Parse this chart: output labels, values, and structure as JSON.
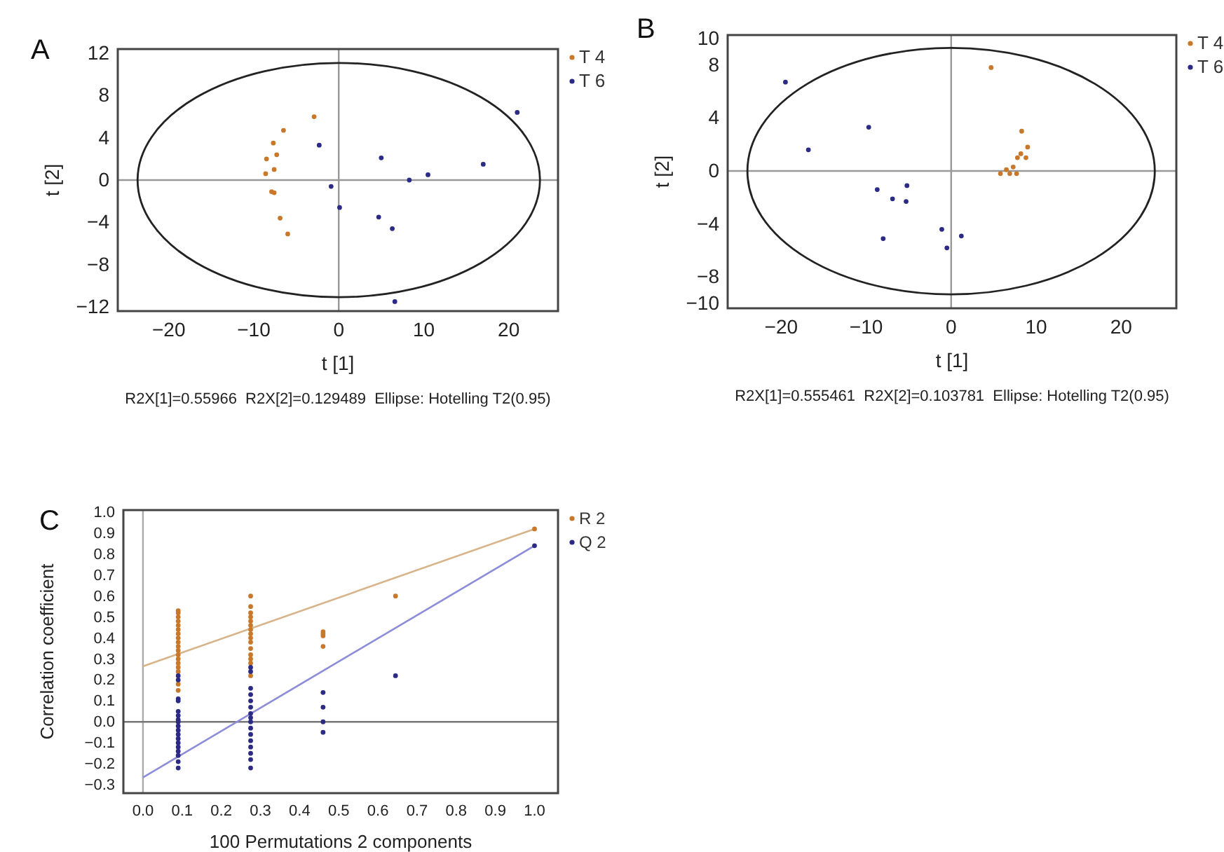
{
  "chart_data": [
    {
      "type": "scatter",
      "title": "A",
      "xlabel": "t [1]",
      "ylabel": "t [2]",
      "annotations": [
        "R2X[1]=0.55966  R2X[2]=0.129489  Ellipse: Hotelling T2(0.95)"
      ],
      "xlim": [
        -26,
        25.8
      ],
      "ylim": [
        -12.4,
        12.4
      ],
      "xticks": [
        -20,
        -10,
        0,
        10,
        20
      ],
      "yticks": [
        12,
        8,
        4,
        0,
        -4,
        -8,
        -12
      ],
      "legend": "top right",
      "grid": false,
      "ref_lines": [
        {
          "axis": "x",
          "value": 0,
          "color": "#999999"
        },
        {
          "axis": "y",
          "value": 0,
          "color": "#999999"
        }
      ],
      "series": [
        {
          "name": "T 4",
          "color": "#c8782a",
          "x": [
            -2.9,
            -6.5,
            -7.7,
            -7.3,
            -8.5,
            -7.6,
            -8.6,
            -7.9,
            -7.6,
            -6.9,
            -6.0
          ],
          "values": [
            6.0,
            4.7,
            3.5,
            2.4,
            2.0,
            1.0,
            0.6,
            -1.1,
            -1.2,
            -3.6,
            -5.1
          ]
        },
        {
          "name": "T 6",
          "color": "#2b2b85",
          "x": [
            -2.3,
            -0.9,
            0.1,
            5.0,
            8.3,
            10.5,
            17.0,
            21.0,
            4.7,
            6.3,
            6.6
          ],
          "values": [
            3.3,
            -0.6,
            -2.6,
            2.1,
            0.0,
            0.5,
            1.5,
            6.4,
            -3.5,
            -4.6,
            -11.5
          ]
        }
      ]
    },
    {
      "type": "scatter",
      "title": "B",
      "xlabel": "t [1]",
      "ylabel": "t [2]",
      "annotations": [
        "R2X[1]=0.555461  R2X[2]=0.103781  Ellipse: Hotelling T2(0.95)"
      ],
      "xlim": [
        -26.3,
        26.5
      ],
      "ylim": [
        -10.35,
        10.25
      ],
      "xticks": [
        -20,
        -10,
        0,
        10,
        20
      ],
      "yticks": [
        10,
        8,
        4,
        0,
        -4,
        -8,
        -10
      ],
      "legend": "top right",
      "grid": false,
      "ref_lines": [
        {
          "axis": "x",
          "value": 0,
          "color": "#999999"
        },
        {
          "axis": "y",
          "value": 0,
          "color": "#999999"
        }
      ],
      "series": [
        {
          "name": "T 4",
          "color": "#c8782a",
          "x": [
            4.7,
            8.3,
            9.0,
            8.2,
            7.8,
            8.8,
            7.3,
            6.5,
            5.8,
            6.9,
            7.7
          ],
          "values": [
            7.8,
            3.0,
            1.8,
            1.3,
            1.0,
            1.0,
            0.3,
            0.1,
            -0.2,
            -0.2,
            -0.2
          ]
        },
        {
          "name": "T 6",
          "color": "#2b2b85",
          "x": [
            -19.5,
            -9.7,
            -16.8,
            -8.7,
            -5.2,
            -6.9,
            -5.3,
            -8.0,
            -1.1,
            1.2,
            -0.5
          ],
          "values": [
            6.7,
            3.3,
            1.6,
            -1.4,
            -1.1,
            -2.1,
            -2.3,
            -5.1,
            -4.4,
            -4.9,
            -5.8
          ]
        }
      ]
    },
    {
      "type": "scatter",
      "title": "C",
      "xlabel": "100 Permutations 2 components",
      "ylabel": "Correlation coefficient",
      "xlim": [
        -0.05,
        1.06
      ],
      "ylim": [
        -0.34,
        1.01
      ],
      "xticks": [
        {
          "value": 0,
          "label": "0.0"
        },
        0.1,
        0.2,
        0.3,
        0.4,
        0.5,
        0.6,
        0.7,
        0.8,
        0.9,
        {
          "value": 1,
          "label": "1.0"
        }
      ],
      "yticks": [
        -0.3,
        -0.2,
        -0.1,
        {
          "value": 0,
          "label": "0.0"
        },
        0.1,
        0.2,
        0.3,
        0.4,
        0.5,
        0.6,
        0.7,
        0.8,
        0.9,
        {
          "value": 1,
          "label": "1.0"
        }
      ],
      "legend": "top right",
      "grid": false,
      "ref_lines": [
        {
          "axis": "x",
          "value": 0,
          "color": "#aaaaaa"
        },
        {
          "axis": "y",
          "value": 0,
          "color": "#777777"
        }
      ],
      "series": [
        {
          "name": "R 2",
          "color": "#c8782a",
          "x": [
            0.09,
            0.09,
            0.09,
            0.09,
            0.09,
            0.09,
            0.09,
            0.09,
            0.09,
            0.09,
            0.09,
            0.09,
            0.09,
            0.09,
            0.09,
            0.09,
            0.09,
            0.09,
            0.275,
            0.275,
            0.275,
            0.275,
            0.275,
            0.275,
            0.275,
            0.275,
            0.275,
            0.275,
            0.275,
            0.275,
            0.275,
            0.275,
            0.275,
            0.46,
            0.46,
            0.46,
            0.46,
            0.645,
            1.0
          ],
          "values": [
            0.53,
            0.52,
            0.5,
            0.48,
            0.46,
            0.44,
            0.42,
            0.4,
            0.38,
            0.36,
            0.34,
            0.32,
            0.3,
            0.28,
            0.26,
            0.24,
            0.18,
            0.15,
            0.6,
            0.55,
            0.52,
            0.5,
            0.48,
            0.46,
            0.44,
            0.42,
            0.4,
            0.38,
            0.35,
            0.32,
            0.3,
            0.28,
            0.22,
            0.43,
            0.42,
            0.41,
            0.36,
            0.6,
            0.92
          ]
        },
        {
          "name": "Q 2",
          "color": "#2b2b85",
          "x": [
            0.09,
            0.09,
            0.09,
            0.09,
            0.09,
            0.09,
            0.09,
            0.09,
            0.09,
            0.09,
            0.09,
            0.09,
            0.09,
            0.09,
            0.09,
            0.09,
            0.09,
            0.09,
            0.275,
            0.275,
            0.275,
            0.275,
            0.275,
            0.275,
            0.275,
            0.275,
            0.275,
            0.275,
            0.275,
            0.275,
            0.275,
            0.275,
            0.275,
            0.275,
            0.46,
            0.46,
            0.46,
            0.46,
            0.645,
            1.0
          ],
          "values": [
            0.22,
            0.2,
            0.11,
            0.1,
            0.05,
            0.03,
            0.01,
            0.0,
            -0.02,
            -0.04,
            -0.06,
            -0.08,
            -0.1,
            -0.12,
            -0.14,
            -0.16,
            -0.19,
            -0.22,
            0.26,
            0.24,
            0.16,
            0.13,
            0.1,
            0.07,
            0.04,
            0.02,
            0.0,
            -0.03,
            -0.06,
            -0.09,
            -0.12,
            -0.15,
            -0.18,
            -0.22,
            0.14,
            0.07,
            0.0,
            -0.05,
            0.22,
            0.84
          ]
        },
        {
          "type": "line",
          "color": "#d8b48a",
          "x": [
            0,
            1.0
          ],
          "values": [
            0.265,
            0.92
          ]
        },
        {
          "type": "line",
          "color": "#8c8cd8",
          "x": [
            0,
            1.0
          ],
          "values": [
            -0.265,
            0.84
          ]
        }
      ]
    }
  ]
}
